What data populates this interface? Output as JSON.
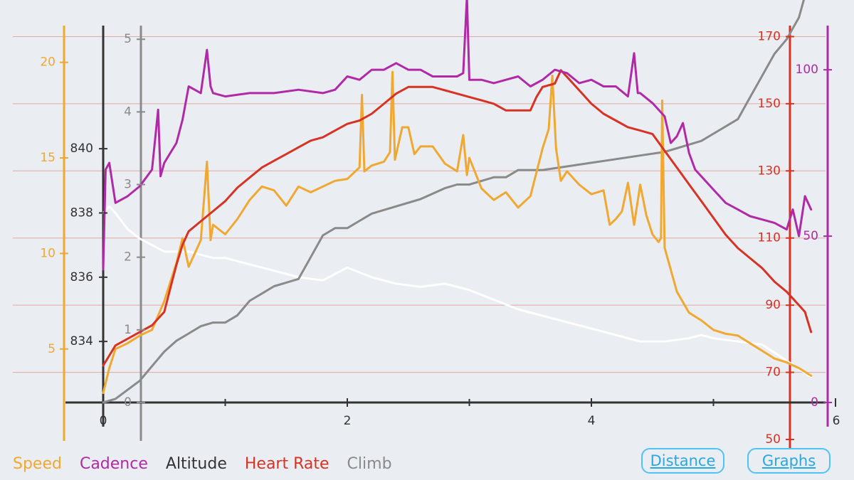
{
  "chart_data": {
    "type": "line",
    "x_axis": {
      "ticks": [
        "0",
        "2",
        "4",
        "6"
      ],
      "range": [
        0,
        6
      ]
    },
    "axes": {
      "speed": {
        "ticks": [
          "5",
          "10",
          "15",
          "20"
        ],
        "values": [
          5,
          10,
          15,
          20
        ],
        "range": [
          2.2,
          21.7
        ]
      },
      "altitude": {
        "ticks": [
          "834",
          "836",
          "838",
          "840"
        ],
        "values": [
          834,
          836,
          838,
          840
        ],
        "range": [
          832.1,
          843.7
        ]
      },
      "climb": {
        "ticks": [
          "0",
          "1",
          "2",
          "3",
          "4",
          "5"
        ],
        "values": [
          0,
          1,
          2,
          3,
          4,
          5
        ],
        "range": [
          0,
          5.1
        ]
      },
      "heart_rate": {
        "ticks": [
          "50",
          "70",
          "90",
          "110",
          "130",
          "150",
          "170"
        ],
        "values": [
          50,
          70,
          90,
          110,
          130,
          150,
          170
        ],
        "range": [
          50,
          172
        ]
      },
      "cadence": {
        "ticks": [
          "0",
          "50",
          "100"
        ],
        "values": [
          0,
          50,
          100
        ],
        "range": [
          0,
          112
        ]
      }
    },
    "colors": {
      "speed": "#f0a830",
      "cadence": "#b02aa8",
      "altitude": "#333333",
      "heart_rate": "#d63324",
      "climb": "#8a8a8a",
      "altitude_line": "#ffffff",
      "gridline": "#e0a8a0",
      "background": "#eaedf1"
    },
    "series": [
      {
        "name": "Speed",
        "axis": "speed",
        "x": [
          0,
          0.05,
          0.1,
          0.2,
          0.3,
          0.4,
          0.5,
          0.6,
          0.65,
          0.7,
          0.8,
          0.85,
          0.88,
          0.9,
          1.0,
          1.1,
          1.2,
          1.3,
          1.4,
          1.5,
          1.6,
          1.7,
          1.8,
          1.9,
          2.0,
          2.1,
          2.12,
          2.14,
          2.2,
          2.3,
          2.35,
          2.37,
          2.39,
          2.45,
          2.5,
          2.55,
          2.6,
          2.7,
          2.8,
          2.9,
          2.95,
          2.98,
          3.0,
          3.1,
          3.2,
          3.3,
          3.4,
          3.5,
          3.6,
          3.65,
          3.68,
          3.71,
          3.75,
          3.8,
          3.9,
          4.0,
          4.1,
          4.15,
          4.2,
          4.25,
          4.3,
          4.35,
          4.4,
          4.45,
          4.5,
          4.55,
          4.57,
          4.58,
          4.6,
          4.7,
          4.8,
          4.9,
          5.0,
          5.1,
          5.2,
          5.3,
          5.4,
          5.5,
          5.6,
          5.7,
          5.8
        ],
        "y": [
          2.7,
          4.0,
          5.0,
          5.3,
          5.7,
          6.0,
          7.5,
          9.5,
          10.8,
          9.3,
          10.7,
          14.8,
          10.7,
          11.5,
          11.0,
          11.8,
          12.8,
          13.5,
          13.3,
          12.5,
          13.5,
          13.2,
          13.5,
          13.8,
          13.9,
          14.5,
          18.3,
          14.3,
          14.6,
          14.8,
          15.3,
          19.5,
          14.9,
          16.6,
          16.6,
          15.2,
          15.6,
          15.6,
          14.7,
          14.3,
          16.2,
          14.1,
          15.0,
          13.4,
          12.8,
          13.2,
          12.4,
          13.0,
          15.5,
          16.5,
          19.3,
          15.5,
          13.8,
          14.3,
          13.6,
          13.1,
          13.3,
          11.5,
          11.8,
          12.2,
          13.7,
          11.5,
          13.6,
          12.0,
          11.0,
          10.6,
          10.8,
          18.0,
          10.3,
          8.0,
          6.9,
          6.5,
          6.0,
          5.8,
          5.7,
          5.3,
          4.9,
          4.5,
          4.3,
          4.0,
          3.6
        ]
      },
      {
        "name": "Cadence",
        "axis": "cadence",
        "x": [
          0,
          0.02,
          0.05,
          0.1,
          0.2,
          0.3,
          0.4,
          0.45,
          0.47,
          0.5,
          0.55,
          0.6,
          0.65,
          0.7,
          0.8,
          0.85,
          0.88,
          0.9,
          1.0,
          1.2,
          1.4,
          1.6,
          1.8,
          1.9,
          2.0,
          2.1,
          2.2,
          2.3,
          2.4,
          2.5,
          2.6,
          2.7,
          2.8,
          2.9,
          2.95,
          2.98,
          3.0,
          3.1,
          3.2,
          3.3,
          3.4,
          3.5,
          3.6,
          3.7,
          3.8,
          3.9,
          4.0,
          4.1,
          4.2,
          4.3,
          4.35,
          4.38,
          4.4,
          4.5,
          4.6,
          4.65,
          4.7,
          4.75,
          4.8,
          4.85,
          4.9,
          5.0,
          5.1,
          5.2,
          5.3,
          5.4,
          5.5,
          5.6,
          5.65,
          5.7,
          5.75,
          5.8
        ],
        "y": [
          40,
          70,
          72,
          60,
          62,
          65,
          70,
          88,
          68,
          72,
          75,
          78,
          85,
          95,
          93,
          106,
          95,
          93,
          92,
          93,
          93,
          94,
          93,
          94,
          98,
          97,
          100,
          100,
          102,
          100,
          100,
          98,
          98,
          98,
          99,
          122,
          97,
          97,
          96,
          97,
          98,
          95,
          97,
          100,
          99,
          96,
          97,
          95,
          95,
          92,
          105,
          93,
          93,
          90,
          86,
          78,
          80,
          84,
          75,
          70,
          68,
          64,
          60,
          58,
          56,
          55,
          54,
          52,
          58,
          50,
          62,
          58
        ]
      },
      {
        "name": "Heart Rate",
        "axis": "heart_rate",
        "x": [
          0,
          0.05,
          0.1,
          0.2,
          0.3,
          0.4,
          0.5,
          0.55,
          0.6,
          0.65,
          0.7,
          0.8,
          0.9,
          1.0,
          1.1,
          1.2,
          1.3,
          1.4,
          1.5,
          1.6,
          1.7,
          1.8,
          1.9,
          2.0,
          2.1,
          2.2,
          2.3,
          2.4,
          2.5,
          2.6,
          2.7,
          2.8,
          2.9,
          3.0,
          3.1,
          3.2,
          3.3,
          3.4,
          3.5,
          3.55,
          3.6,
          3.7,
          3.75,
          3.8,
          3.85,
          3.9,
          4.0,
          4.1,
          4.2,
          4.3,
          4.4,
          4.5,
          4.6,
          4.7,
          4.8,
          4.9,
          5.0,
          5.1,
          5.2,
          5.3,
          5.4,
          5.5,
          5.6,
          5.7,
          5.75,
          5.8
        ],
        "y": [
          72,
          75,
          78,
          80,
          82,
          84,
          88,
          95,
          102,
          108,
          112,
          115,
          118,
          121,
          125,
          128,
          131,
          133,
          135,
          137,
          139,
          140,
          142,
          144,
          145,
          147,
          150,
          153,
          155,
          155,
          155,
          154,
          153,
          152,
          151,
          150,
          148,
          148,
          148,
          152,
          155,
          156,
          160,
          158,
          156,
          154,
          150,
          147,
          145,
          143,
          142,
          141,
          136,
          131,
          126,
          121,
          116,
          111,
          107,
          104,
          101,
          97,
          94,
          90,
          88,
          82
        ]
      },
      {
        "name": "Altitude",
        "axis": "altitude",
        "x": [
          0,
          0.05,
          0.1,
          0.2,
          0.3,
          0.4,
          0.5,
          0.6,
          0.7,
          0.8,
          0.9,
          1.0,
          1.2,
          1.4,
          1.6,
          1.8,
          2.0,
          2.2,
          2.4,
          2.6,
          2.8,
          3.0,
          3.2,
          3.4,
          3.6,
          3.8,
          4.0,
          4.2,
          4.4,
          4.6,
          4.8,
          4.9,
          5.0,
          5.2,
          5.4,
          5.6,
          5.8
        ],
        "y": [
          838.0,
          838.2,
          838.0,
          837.5,
          837.2,
          837.0,
          836.8,
          836.8,
          836.8,
          836.7,
          836.6,
          836.6,
          836.4,
          836.2,
          836.0,
          835.9,
          836.3,
          836.0,
          835.8,
          835.7,
          835.8,
          835.6,
          835.3,
          835.0,
          834.8,
          834.6,
          834.4,
          834.2,
          834.0,
          834.0,
          834.1,
          834.2,
          834.1,
          834.0,
          833.9,
          833.4,
          832.9
        ]
      },
      {
        "name": "Climb",
        "axis": "climb",
        "x": [
          0,
          0.1,
          0.3,
          0.4,
          0.5,
          0.6,
          0.7,
          0.8,
          0.9,
          1.0,
          1.1,
          1.2,
          1.3,
          1.4,
          1.5,
          1.6,
          1.7,
          1.8,
          1.9,
          2.0,
          2.2,
          2.4,
          2.6,
          2.8,
          2.9,
          3.0,
          3.2,
          3.3,
          3.4,
          3.6,
          3.8,
          4.0,
          4.2,
          4.4,
          4.6,
          4.7,
          4.8,
          4.9,
          5.0,
          5.1,
          5.2,
          5.3,
          5.4,
          5.5,
          5.6,
          5.7,
          5.75,
          5.8
        ],
        "y": [
          0.0,
          0.05,
          0.3,
          0.5,
          0.7,
          0.85,
          0.95,
          1.05,
          1.1,
          1.1,
          1.2,
          1.4,
          1.5,
          1.6,
          1.65,
          1.7,
          2.0,
          2.3,
          2.4,
          2.4,
          2.6,
          2.7,
          2.8,
          2.95,
          3.0,
          3.0,
          3.1,
          3.1,
          3.2,
          3.2,
          3.25,
          3.3,
          3.35,
          3.4,
          3.45,
          3.5,
          3.55,
          3.6,
          3.7,
          3.8,
          3.9,
          4.2,
          4.5,
          4.8,
          5.0,
          5.3,
          5.6,
          5.7
        ]
      }
    ],
    "grid": true
  },
  "legend": {
    "speed": "Speed",
    "cadence": "Cadence",
    "altitude": "Altitude",
    "heart_rate": "Heart Rate",
    "climb": "Climb"
  },
  "buttons": {
    "distance": "Distance",
    "graphs": "Graphs"
  }
}
